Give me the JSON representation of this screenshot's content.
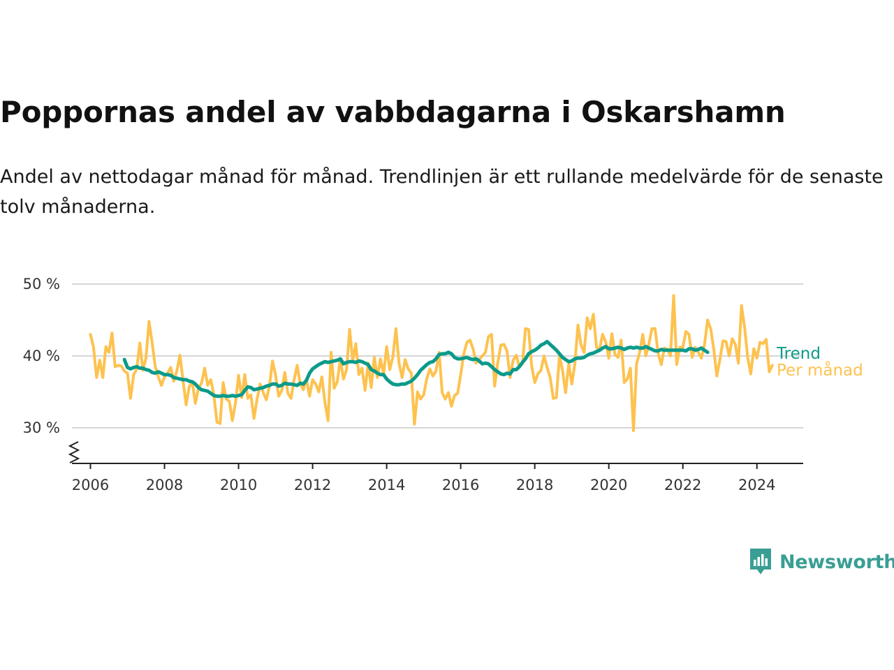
{
  "header": {
    "title": "Poppornas andel av vabbdagarna i Oskarshamn",
    "subtitle": "Andel av nettodagar månad för månad. Trendlinjen är ett rullande medelvärde för de senaste tolv månaderna."
  },
  "brand": {
    "name": "Newsworthy",
    "icon": "bar-chart-speech-bubble-icon",
    "color": "#3a9e94"
  },
  "chart_data": {
    "type": "line",
    "title": "Poppornas andel av vabbdagarna i Oskarshamn",
    "subtitle": "Andel av nettodagar månad för månad. Trendlinjen är ett rullande medelvärde för de senaste tolv månaderna.",
    "xlabel": "",
    "ylabel": "",
    "x_ticks": [
      "2006",
      "2008",
      "2010",
      "2012",
      "2014",
      "2016",
      "2018",
      "2020",
      "2022",
      "2024"
    ],
    "x_tick_values": [
      2006,
      2008,
      2010,
      2012,
      2014,
      2016,
      2018,
      2020,
      2022,
      2024
    ],
    "y_ticks": [
      "30 %",
      "40 %",
      "50 %"
    ],
    "y_tick_values": [
      30,
      40,
      50
    ],
    "xlim": [
      2005.5,
      2025.25
    ],
    "ylim": [
      25,
      50
    ],
    "y_axis_break": true,
    "grid": "horizontal",
    "legend": "inline-right",
    "series": [
      {
        "name": "Per månad",
        "color": "#fdc24f",
        "start": "2006-01",
        "values": [
          43.0,
          41.2,
          37.0,
          39.4,
          37.0,
          41.3,
          40.5,
          43.2,
          38.5,
          38.7,
          38.6,
          37.9,
          37.6,
          34.1,
          37.4,
          38.2,
          41.8,
          38.0,
          39.7,
          44.8,
          41.8,
          38.5,
          37.1,
          35.9,
          37.1,
          37.6,
          38.4,
          36.5,
          37.9,
          40.1,
          36.6,
          33.2,
          35.7,
          36.4,
          33.4,
          35.5,
          36.2,
          38.3,
          35.9,
          36.7,
          34.6,
          30.8,
          30.6,
          36.3,
          34.0,
          33.7,
          31.0,
          33.4,
          37.3,
          34.2,
          37.4,
          34.1,
          34.6,
          31.3,
          34.0,
          36.1,
          34.9,
          33.9,
          35.8,
          39.3,
          37.3,
          34.4,
          35.2,
          37.7,
          34.8,
          34.1,
          36.7,
          38.7,
          36.1,
          35.3,
          36.8,
          34.4,
          36.7,
          36.1,
          35.0,
          37.1,
          33.5,
          31.0,
          40.5,
          35.5,
          36.4,
          39.6,
          36.8,
          38.1,
          43.7,
          39.3,
          41.7,
          37.4,
          38.3,
          35.2,
          39.0,
          35.6,
          39.8,
          37.0,
          39.6,
          37.4,
          41.3,
          38.1,
          39.8,
          43.8,
          39.0,
          37.0,
          39.5,
          38.2,
          37.6,
          30.5,
          35.0,
          34.0,
          34.6,
          36.8,
          38.2,
          37.2,
          37.9,
          40.5,
          34.9,
          34.0,
          34.9,
          33.0,
          34.5,
          34.8,
          37.4,
          40.3,
          41.9,
          42.2,
          41.0,
          39.0,
          39.5,
          40.0,
          40.5,
          42.7,
          43.0,
          35.8,
          39.0,
          41.5,
          41.6,
          40.7,
          37.0,
          39.4,
          40.1,
          38.5,
          38.9,
          43.8,
          43.7,
          38.6,
          36.3,
          37.5,
          38.0,
          40.0,
          38.4,
          37.0,
          34.1,
          34.2,
          40.0,
          38.0,
          34.9,
          38.9,
          36.1,
          38.9,
          44.3,
          41.5,
          40.5,
          45.3,
          43.8,
          45.8,
          41.2,
          40.9,
          43.0,
          41.9,
          39.7,
          43.1,
          40.2,
          39.8,
          42.2,
          36.3,
          36.8,
          38.3,
          29.6,
          38.9,
          40.5,
          43.0,
          40.0,
          41.7,
          43.8,
          43.8,
          40.3,
          38.8,
          41.1,
          40.9,
          40.0,
          48.4,
          38.8,
          41.2,
          41.2,
          43.4,
          43.0,
          39.8,
          41.2,
          40.5,
          39.7,
          41.5,
          45.0,
          43.8,
          41.0,
          37.2,
          39.5,
          42.1,
          42.0,
          40.0,
          42.4,
          41.6,
          39.0,
          47.0,
          44.0,
          39.8,
          37.5,
          41.0,
          39.7,
          41.9,
          41.7,
          42.3,
          37.8,
          38.7
        ]
      },
      {
        "name": "Trend",
        "color": "#0c9a8a",
        "start": "2006-12",
        "values": [
          39.5,
          38.4,
          38.2,
          38.4,
          38.5,
          38.3,
          38.3,
          38.1,
          38.0,
          37.7,
          37.6,
          37.8,
          37.6,
          37.4,
          37.4,
          37.3,
          37.0,
          36.9,
          36.8,
          36.7,
          36.7,
          36.5,
          36.4,
          36.1,
          35.6,
          35.3,
          35.2,
          35.1,
          34.8,
          34.5,
          34.4,
          34.4,
          34.5,
          34.4,
          34.4,
          34.5,
          34.4,
          34.5,
          34.6,
          35.2,
          35.7,
          35.6,
          35.3,
          35.4,
          35.5,
          35.6,
          35.8,
          35.9,
          36.1,
          36.1,
          35.8,
          35.9,
          36.2,
          36.1,
          36.1,
          36.0,
          35.9,
          36.2,
          36.1,
          36.6,
          37.6,
          38.2,
          38.5,
          38.8,
          39.0,
          39.2,
          39.1,
          39.2,
          39.3,
          39.4,
          39.6,
          38.9,
          39.1,
          39.2,
          39.2,
          39.1,
          39.3,
          39.2,
          39.0,
          38.8,
          38.1,
          37.9,
          37.6,
          37.4,
          37.4,
          36.8,
          36.4,
          36.1,
          36.0,
          36.0,
          36.1,
          36.1,
          36.3,
          36.5,
          36.9,
          37.4,
          38.0,
          38.4,
          38.8,
          39.1,
          39.2,
          39.6,
          40.2,
          40.3,
          40.3,
          40.5,
          40.3,
          39.8,
          39.6,
          39.6,
          39.7,
          39.8,
          39.6,
          39.5,
          39.6,
          39.3,
          38.9,
          39.0,
          38.9,
          38.5,
          38.1,
          37.8,
          37.5,
          37.4,
          37.6,
          37.5,
          38.1,
          38.1,
          38.5,
          39.1,
          39.6,
          40.3,
          40.6,
          40.8,
          41.1,
          41.5,
          41.7,
          42.0,
          41.6,
          41.2,
          40.8,
          40.3,
          39.8,
          39.5,
          39.2,
          39.3,
          39.6,
          39.7,
          39.7,
          39.8,
          40.1,
          40.3,
          40.4,
          40.6,
          40.8,
          41.1,
          41.3,
          41.0,
          41.0,
          41.1,
          41.2,
          41.1,
          40.9,
          41.1,
          41.2,
          41.1,
          41.2,
          41.1,
          41.1,
          41.3,
          41.1,
          40.9,
          40.7,
          40.7,
          40.9,
          40.8,
          40.8,
          40.8,
          40.8,
          40.8,
          40.8,
          40.8,
          40.7,
          41.0,
          41.0,
          40.8,
          40.9,
          41.1,
          40.8,
          40.5
        ]
      }
    ]
  }
}
